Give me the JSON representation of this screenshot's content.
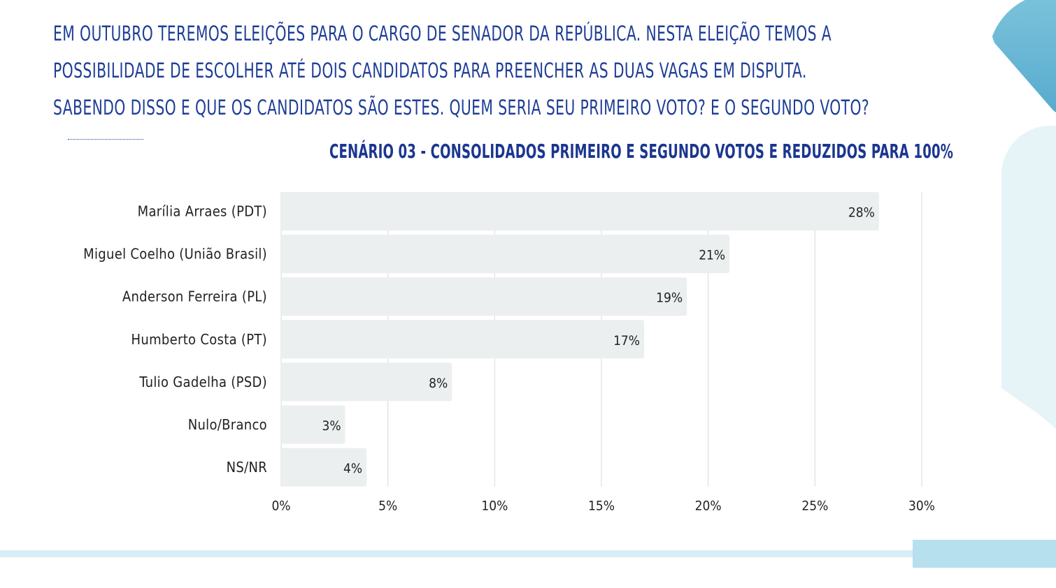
{
  "question": {
    "lines": [
      "EM OUTUBRO TEREMOS ELEIÇÕES PARA O CARGO DE SENADOR DA REPÚBLICA. NESTA ELEIÇÃO TEMOS A",
      "POSSIBILIDADE DE ESCOLHER ATÉ DOIS CANDIDATOS PARA PREENCHER AS DUAS VAGAS EM DISPUTA.",
      "SABENDO DISSO E QUE OS CANDIDATOS SÃO ESTES. QUEM SERIA SEU PRIMEIRO VOTO? E O SEGUNDO VOTO?"
    ]
  },
  "colors": {
    "text_primary": "#1e3e96",
    "title": "#1b3690",
    "bar_fill": "#ecefef",
    "grid": "#d9d9d9",
    "label": "#222222",
    "accent_blue": "#4fa6cb",
    "accent_light": "#d7eef5"
  },
  "chart_data": {
    "type": "bar",
    "orientation": "horizontal",
    "title": "CENÁRIO 03 - CONSOLIDADOS PRIMEIRO E SEGUNDO VOTOS E REDUZIDOS PARA 100%",
    "categories": [
      "Marília Arraes (PDT)",
      "Miguel Coelho (União Brasil)",
      "Anderson Ferreira (PL)",
      "Humberto Costa (PT)",
      "Tulio Gadelha (PSD)",
      "Nulo/Branco",
      "NS/NR"
    ],
    "values": [
      28,
      21,
      19,
      17,
      8,
      3,
      4
    ],
    "value_labels": [
      "28%",
      "21%",
      "19%",
      "17%",
      "8%",
      "3%",
      "4%"
    ],
    "xlim": [
      0,
      30
    ],
    "x_ticks": [
      0,
      5,
      10,
      15,
      20,
      25,
      30
    ],
    "x_tick_labels": [
      "0%",
      "5%",
      "10%",
      "15%",
      "20%",
      "25%",
      "30%"
    ],
    "grid": true,
    "xlabel": "",
    "ylabel": ""
  }
}
